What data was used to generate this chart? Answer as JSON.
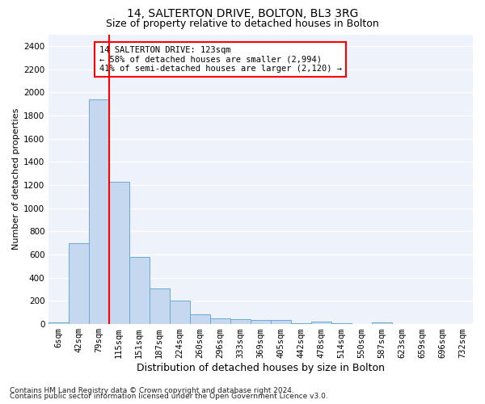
{
  "title": "14, SALTERTON DRIVE, BOLTON, BL3 3RG",
  "subtitle": "Size of property relative to detached houses in Bolton",
  "xlabel": "Distribution of detached houses by size in Bolton",
  "ylabel": "Number of detached properties",
  "footnote1": "Contains HM Land Registry data © Crown copyright and database right 2024.",
  "footnote2": "Contains public sector information licensed under the Open Government Licence v3.0.",
  "categories": [
    "6sqm",
    "42sqm",
    "79sqm",
    "115sqm",
    "151sqm",
    "187sqm",
    "224sqm",
    "260sqm",
    "296sqm",
    "333sqm",
    "369sqm",
    "405sqm",
    "442sqm",
    "478sqm",
    "514sqm",
    "550sqm",
    "587sqm",
    "623sqm",
    "659sqm",
    "696sqm",
    "732sqm"
  ],
  "values": [
    15,
    700,
    1940,
    1225,
    575,
    305,
    200,
    83,
    45,
    38,
    32,
    32,
    5,
    20,
    5,
    0,
    15,
    0,
    0,
    0,
    0
  ],
  "bar_color": "#c5d8ef",
  "bar_edgecolor": "#6aaad4",
  "annotation_line1": "14 SALTERTON DRIVE: 123sqm",
  "annotation_line2": "← 58% of detached houses are smaller (2,994)",
  "annotation_line3": "41% of semi-detached houses are larger (2,120) →",
  "red_line_index": 3,
  "ylim_max": 2500,
  "yticks": [
    0,
    200,
    400,
    600,
    800,
    1000,
    1200,
    1400,
    1600,
    1800,
    2000,
    2200,
    2400
  ],
  "bg_color": "#eef2fa",
  "grid_color": "#ffffff",
  "title_fontsize": 10,
  "subtitle_fontsize": 9,
  "ylabel_fontsize": 8,
  "xlabel_fontsize": 9,
  "tick_fontsize": 7.5,
  "annot_fontsize": 7.5,
  "footnote_fontsize": 6.5
}
